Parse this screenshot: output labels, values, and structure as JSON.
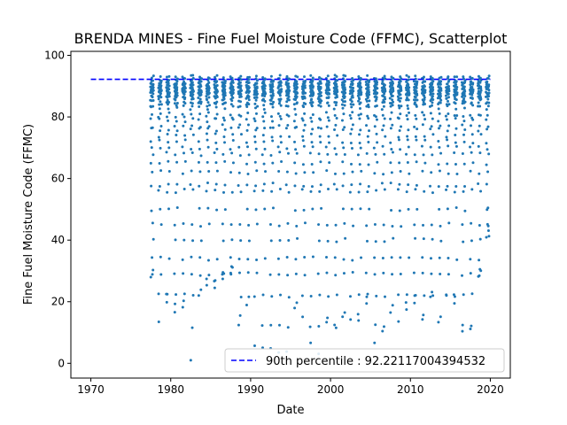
{
  "chart_data": {
    "type": "scatter",
    "title": "BRENDA MINES - Fine Fuel Moisture Code (FFMC), Scatterplot",
    "xlabel": "Date",
    "ylabel": "Fine Fuel Moisture Code (FFMC)",
    "xlim": [
      1967.5,
      2022.5
    ],
    "ylim": [
      -4.8,
      101.3
    ],
    "xticks": [
      1970,
      1980,
      1990,
      2000,
      2010,
      2020
    ],
    "yticks": [
      0,
      20,
      40,
      60,
      80,
      100
    ],
    "grid": false,
    "legend_position": "lower-right",
    "point_color": "#1f77b4",
    "reference_line": {
      "label": "90th percentile : 92.22117004394532",
      "y": 92.22117004394532,
      "x_range": [
        1970,
        2020
      ],
      "color": "#0000ff",
      "style": "dashed"
    },
    "series": [
      {
        "season_years": [
          1977,
          1978,
          1979,
          1980,
          1981,
          1982,
          1983,
          1984,
          1985,
          1986,
          1987,
          1988,
          1989,
          1990,
          1991,
          1992,
          1993,
          1994,
          1995,
          1996,
          1997,
          1998,
          1999,
          2000,
          2001,
          2002,
          2003,
          2004,
          2005,
          2006,
          2007,
          2008,
          2009,
          2010,
          2011,
          2012,
          2013,
          2014,
          2015,
          2016,
          2017,
          2018,
          2019
        ],
        "season_start_fraction": 0.45,
        "season_end_fraction": 0.85,
        "values_sample": [
          86,
          88,
          90,
          84,
          79,
          91,
          72,
          88,
          65,
          89,
          90,
          83,
          58,
          91,
          88,
          76,
          87,
          50,
          92,
          85,
          89,
          70,
          88,
          93,
          81,
          34,
          90,
          87,
          62,
          88,
          91,
          29,
          86,
          90,
          77,
          89,
          45,
          92,
          88,
          84,
          12,
          90,
          87,
          68,
          91,
          85,
          89,
          40,
          88,
          93,
          80,
          87,
          56,
          90,
          22,
          89,
          86,
          92,
          74,
          88
        ],
        "min_by_season": [
          28,
          13,
          20,
          17,
          18,
          1,
          22,
          25,
          25,
          27,
          29,
          13,
          19,
          6,
          5,
          5,
          3,
          4,
          18,
          15,
          7,
          3,
          13,
          12,
          15,
          14,
          14,
          20,
          7,
          11,
          17,
          14,
          18,
          20,
          14,
          21,
          13,
          22,
          20,
          11,
          11,
          28,
          41
        ],
        "max_value": 97
      }
    ]
  }
}
